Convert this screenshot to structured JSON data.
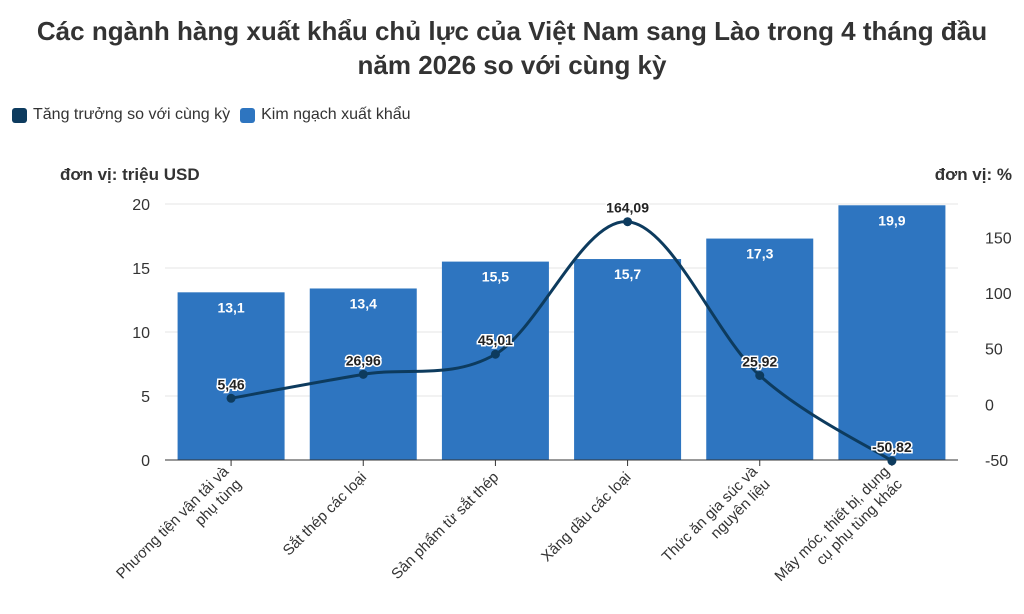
{
  "title_line1": "Các ngành hàng xuất khẩu chủ lực của Việt Nam sang Lào trong 4 tháng đầu",
  "title_line2": "năm 2026 so với cùng kỳ",
  "legend": [
    {
      "label": "Tăng trưởng so với cùng kỳ",
      "color": "#0d3b5e"
    },
    {
      "label": "Kim ngạch xuất khẩu",
      "color": "#2e75c0"
    }
  ],
  "left_unit": "đơn vị: triệu USD",
  "right_unit": "đơn vị: %",
  "colors": {
    "bar": "#2e75c0",
    "line": "#0d3b5e",
    "grid": "#e6e6e6"
  },
  "chart_data": {
    "type": "bar",
    "categories": [
      [
        "Phương tiện vận tải và",
        "phụ tùng"
      ],
      [
        "Sắt thép các loại"
      ],
      [
        "Sản phẩm từ sắt thép"
      ],
      [
        "Xăng dầu các loại"
      ],
      [
        "Thức ăn gia súc và",
        "nguyên liệu"
      ],
      [
        "Máy móc, thiết bị, dụng",
        "cụ phụ tùng khác"
      ]
    ],
    "series": [
      {
        "name": "Kim ngạch xuất khẩu",
        "type": "bar",
        "axis": "left",
        "values": [
          13.1,
          13.4,
          15.5,
          15.7,
          17.3,
          19.9
        ],
        "labels": [
          "13,1",
          "13,4",
          "15,5",
          "15,7",
          "17,3",
          "19,9"
        ]
      },
      {
        "name": "Tăng trưởng so với cùng kỳ",
        "type": "line",
        "axis": "right",
        "values": [
          5.46,
          26.96,
          45.01,
          164.09,
          25.92,
          -50.82
        ],
        "labels": [
          "5,46",
          "26,96",
          "45,01",
          "164,09",
          "25,92",
          "-50,82"
        ]
      }
    ],
    "y_left": {
      "min": 0,
      "max": 20,
      "ticks": [
        0,
        5,
        10,
        15,
        20
      ]
    },
    "y_right": {
      "min": -50,
      "max": 180,
      "ticks": [
        -50,
        0,
        50,
        100,
        150
      ]
    },
    "grid": true,
    "legend_position": "top-left"
  }
}
